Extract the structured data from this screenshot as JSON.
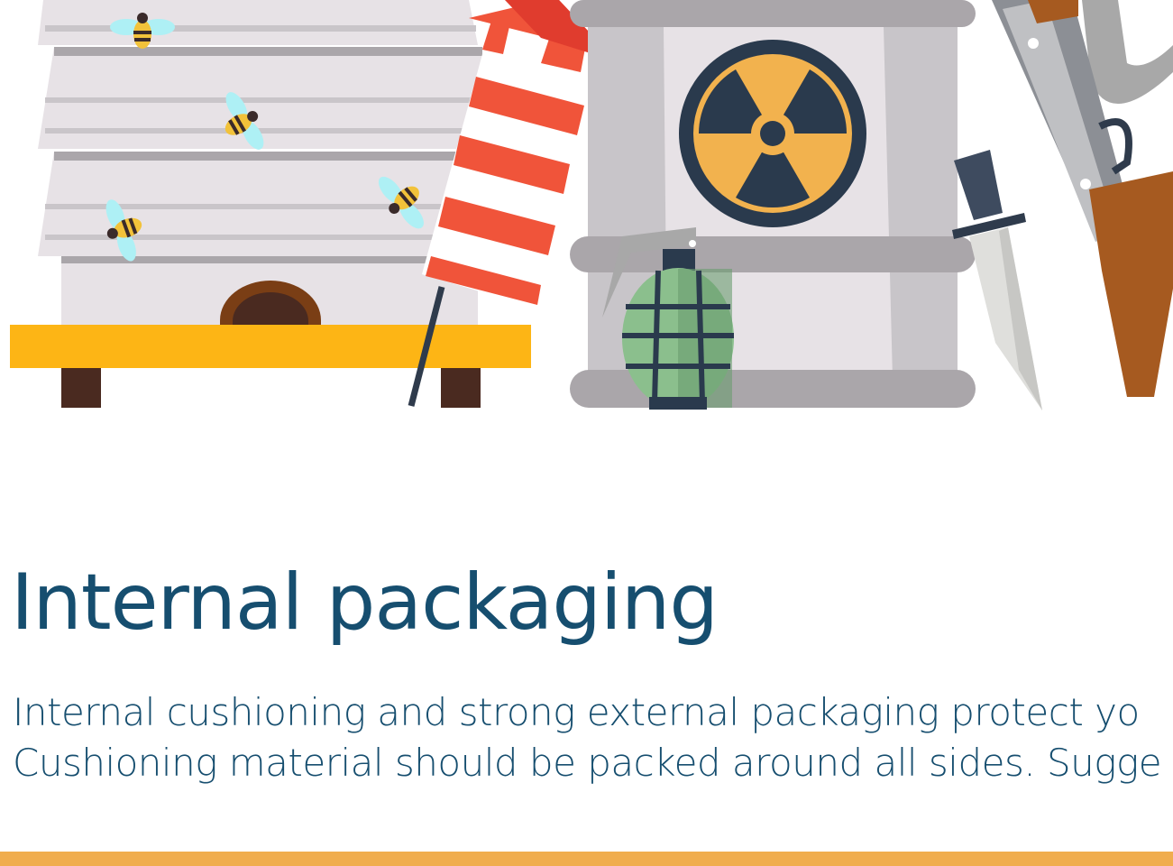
{
  "heading": "Internal packaging",
  "paragraph": {
    "lines": [
      "Internal cushioning and strong external packaging protect yo",
      "Cushioning material should be packed around all sides. Sugge"
    ]
  }
}
